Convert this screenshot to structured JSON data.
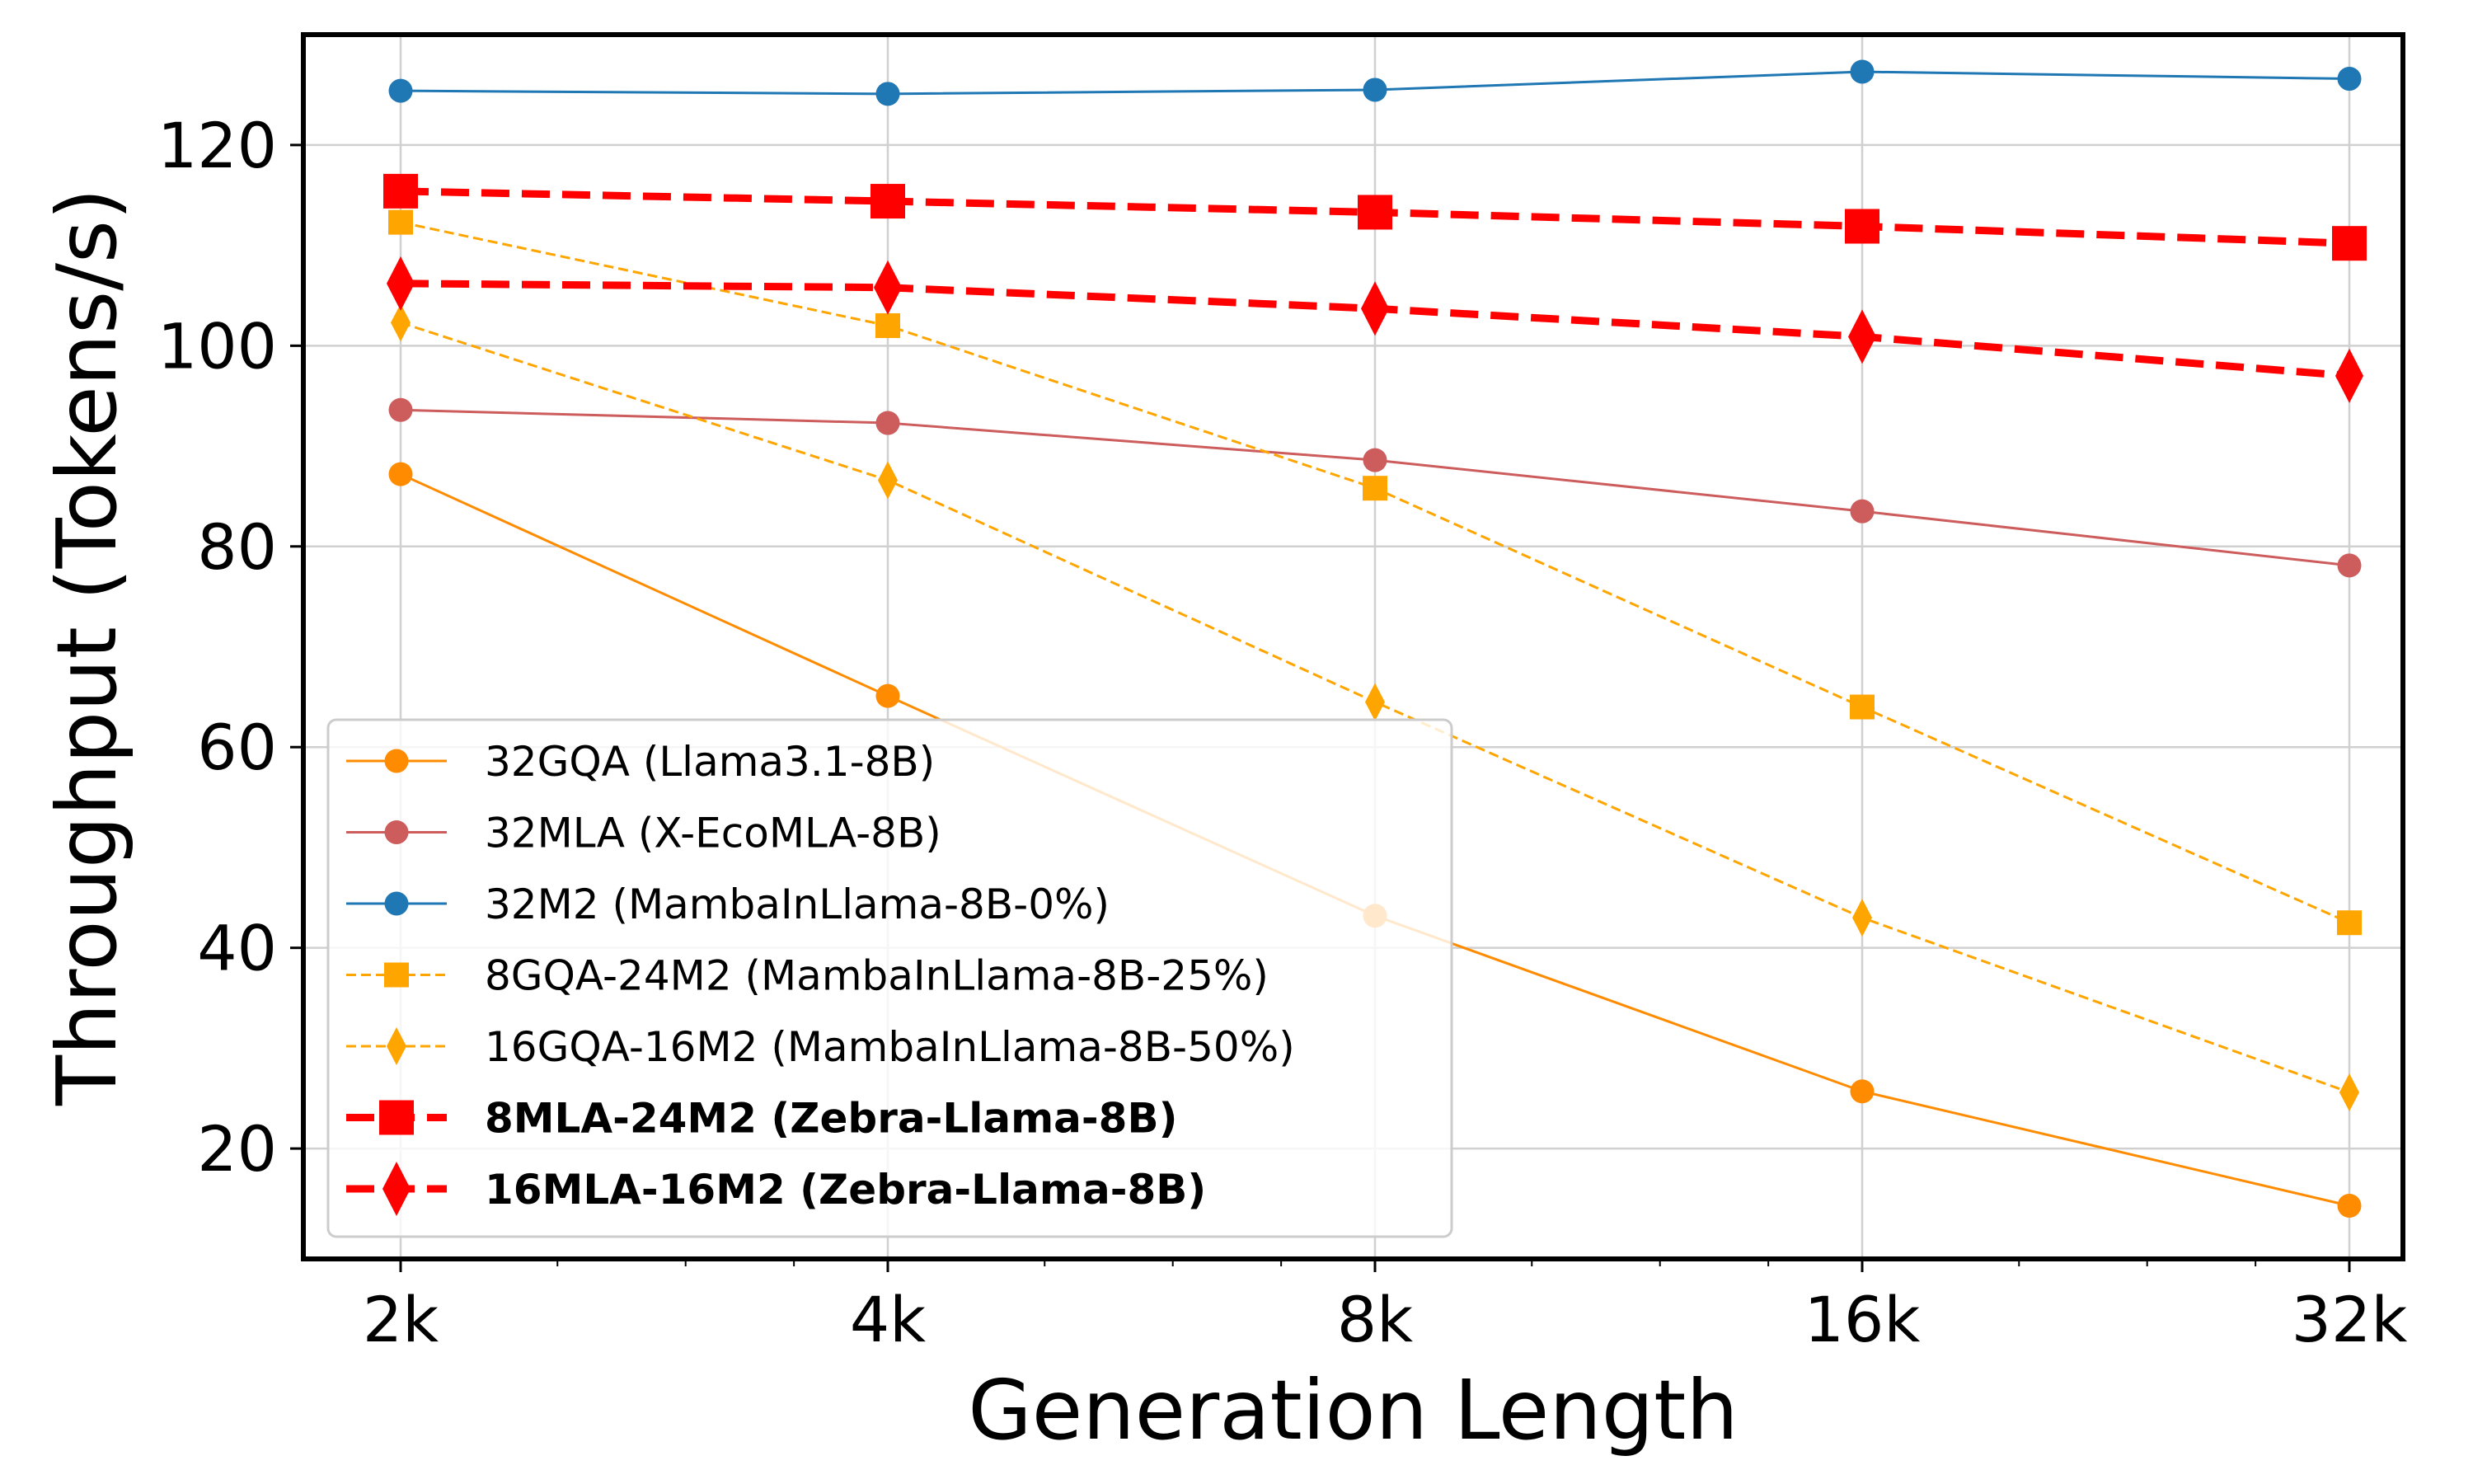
{
  "chart_data": {
    "type": "line",
    "title": "",
    "xlabel": "Generation Length",
    "ylabel": "Throughput (Tokens/s)",
    "x_scale": "log2",
    "categories": [
      "2k",
      "4k",
      "8k",
      "16k",
      "32k"
    ],
    "ylim": [
      9,
      131
    ],
    "yticks": [
      20,
      40,
      60,
      80,
      100,
      120
    ],
    "grid": true,
    "legend_position": "lower-left",
    "series": [
      {
        "name": "32GQA (Llama3.1-8B)",
        "values": [
          87.2,
          65.1,
          43.2,
          25.7,
          14.3
        ],
        "color": "#ff8c00",
        "marker": "circle",
        "dash": "solid",
        "bold": false
      },
      {
        "name": "32MLA (X-EcoMLA-8B)",
        "values": [
          93.6,
          92.3,
          88.6,
          83.5,
          78.1
        ],
        "color": "#cd5c5c",
        "marker": "circle",
        "dash": "solid",
        "bold": false
      },
      {
        "name": "32M2 (MambaInLlama-8B-0%)",
        "values": [
          125.4,
          125.1,
          125.5,
          127.3,
          126.6
        ],
        "color": "#1f77b4",
        "marker": "circle",
        "dash": "solid",
        "bold": false
      },
      {
        "name": "8GQA-24M2 (MambaInLlama-8B-25%)",
        "values": [
          112.3,
          102.0,
          85.8,
          64.0,
          42.5
        ],
        "color": "#ffa500",
        "marker": "square",
        "dash": "dashed",
        "bold": false
      },
      {
        "name": "16GQA-16M2 (MambaInLlama-8B-50%)",
        "values": [
          102.3,
          86.6,
          64.5,
          43.0,
          25.6
        ],
        "color": "#ffa500",
        "marker": "thin_diamond",
        "dash": "dashed",
        "bold": false
      },
      {
        "name": "8MLA-24M2 (Zebra-Llama-8B)",
        "values": [
          115.4,
          114.4,
          113.3,
          111.9,
          110.2
        ],
        "color": "#ff0000",
        "marker": "square",
        "dash": "dashed",
        "bold": true
      },
      {
        "name": "16MLA-16M2 (Zebra-Llama-8B)",
        "values": [
          106.2,
          105.8,
          103.7,
          100.9,
          97.0
        ],
        "color": "#ff0000",
        "marker": "thin_diamond",
        "dash": "dashed",
        "bold": true
      }
    ]
  }
}
